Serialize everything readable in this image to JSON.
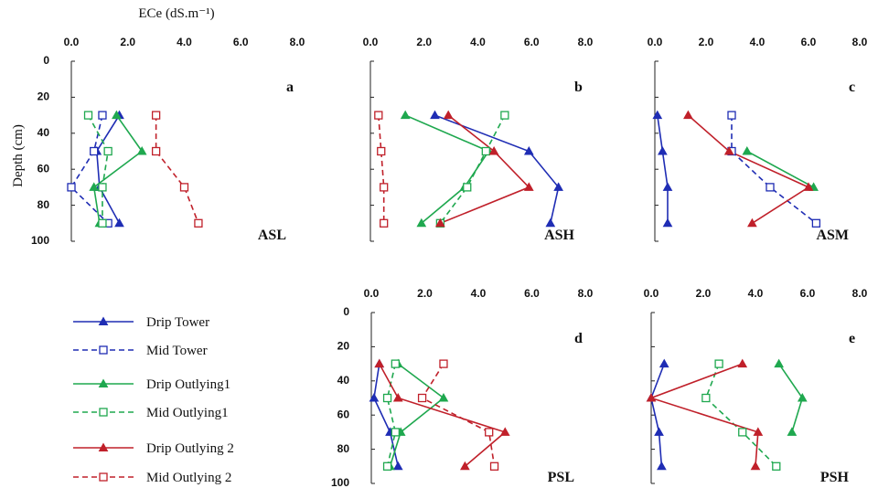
{
  "legend": [
    {
      "name": "Drip Tower",
      "color": "#1f2db4",
      "dash": false,
      "marker": "triangle"
    },
    {
      "name": "Mid Tower",
      "color": "#1f2db4",
      "dash": true,
      "marker": "square"
    },
    {
      "name": "Drip Outlying1",
      "color": "#1fa84f",
      "dash": false,
      "marker": "triangle"
    },
    {
      "name": "Mid Outlying1",
      "color": "#1fa84f",
      "dash": true,
      "marker": "square"
    },
    {
      "name": "Drip Outlying 2",
      "color": "#c0202a",
      "dash": false,
      "marker": "triangle"
    },
    {
      "name": "Mid Outlying 2",
      "color": "#c0202a",
      "dash": true,
      "marker": "square"
    }
  ],
  "chart_data": [
    {
      "type": "line",
      "panel": "a",
      "title": "ASL",
      "xlabel": "ECe (dS.m⁻¹)",
      "ylabel": "Depth (cm)",
      "xlim": [
        0,
        8
      ],
      "xticks": [
        {
          "value": 0,
          "label": "0.0"
        },
        {
          "value": 2,
          "label": "2.0"
        },
        {
          "value": 4,
          "label": "4.0"
        },
        {
          "value": 6,
          "label": "6.0"
        },
        {
          "value": 8,
          "label": "8.0"
        }
      ],
      "ylim": [
        0,
        100
      ],
      "yticks": [
        0,
        20,
        40,
        60,
        80,
        100
      ],
      "ytick_labels": true,
      "y": [
        30,
        50,
        70,
        90
      ],
      "series": [
        {
          "values": [
            1.7,
            0.9,
            1.0,
            1.7
          ]
        },
        {
          "values": [
            1.1,
            0.8,
            0.0,
            1.3
          ]
        },
        {
          "values": [
            1.6,
            2.5,
            0.8,
            1.0
          ]
        },
        {
          "values": [
            0.6,
            1.3,
            1.1,
            1.1
          ]
        },
        {
          "values": [
            null,
            null,
            null,
            null
          ]
        },
        {
          "values": [
            3.0,
            3.0,
            4.0,
            4.5
          ]
        }
      ]
    },
    {
      "type": "line",
      "panel": "b",
      "title": "ASH",
      "xlim": [
        0,
        8
      ],
      "xticks": [
        {
          "value": 0,
          "label": "0.0"
        },
        {
          "value": 2,
          "label": "2.0"
        },
        {
          "value": 4,
          "label": "4.0"
        },
        {
          "value": 6,
          "label": "6.0"
        },
        {
          "value": 8,
          "label": "8.0"
        }
      ],
      "ylim": [
        0,
        100
      ],
      "yticks": [
        0,
        20,
        40,
        60,
        80,
        100
      ],
      "ytick_labels": false,
      "y": [
        30,
        50,
        70,
        90
      ],
      "series": [
        {
          "values": [
            2.4,
            5.9,
            7.0,
            6.7
          ]
        },
        {
          "values": [
            null,
            null,
            null,
            null
          ]
        },
        {
          "values": [
            1.3,
            4.4,
            3.5,
            1.9
          ]
        },
        {
          "values": [
            5.0,
            4.3,
            3.6,
            2.6
          ]
        },
        {
          "values": [
            2.9,
            4.6,
            5.9,
            2.6
          ]
        },
        {
          "values": [
            0.3,
            0.4,
            0.5,
            0.5
          ]
        }
      ]
    },
    {
      "type": "line",
      "panel": "c",
      "title": "ASM",
      "xlim": [
        0,
        8
      ],
      "xticks": [
        {
          "value": 0,
          "label": "0.0"
        },
        {
          "value": 2,
          "label": "2.0"
        },
        {
          "value": 4,
          "label": "4.0"
        },
        {
          "value": 6,
          "label": "6.0"
        },
        {
          "value": 8,
          "label": "8.0"
        }
      ],
      "ylim": [
        0,
        100
      ],
      "yticks": [
        0,
        20,
        40,
        60,
        80,
        100
      ],
      "ytick_labels": false,
      "y": [
        30,
        50,
        70,
        90
      ],
      "series": [
        {
          "values": [
            0.1,
            0.3,
            0.5,
            0.5
          ]
        },
        {
          "values": [
            3.0,
            3.0,
            4.5,
            6.3
          ]
        },
        {
          "values": [
            null,
            3.6,
            6.2,
            null
          ]
        },
        {
          "values": [
            null,
            null,
            null,
            null
          ]
        },
        {
          "values": [
            1.3,
            2.9,
            6.0,
            3.8
          ]
        },
        {
          "values": [
            null,
            null,
            null,
            null
          ]
        }
      ]
    },
    {
      "type": "line",
      "panel": "d",
      "title": "PSL",
      "xlim": [
        0,
        8
      ],
      "xticks": [
        {
          "value": 0,
          "label": "0.0"
        },
        {
          "value": 2,
          "label": "2.0"
        },
        {
          "value": 4,
          "label": "4.0"
        },
        {
          "value": 6,
          "label": "6.0"
        },
        {
          "value": 8,
          "label": "8.0"
        }
      ],
      "ylim": [
        0,
        100
      ],
      "yticks": [
        0,
        20,
        40,
        60,
        80,
        100
      ],
      "ytick_labels": true,
      "y": [
        30,
        50,
        70,
        90
      ],
      "series": [
        {
          "values": [
            0.3,
            0.1,
            0.7,
            1.0
          ]
        },
        {
          "values": [
            null,
            null,
            null,
            null
          ]
        },
        {
          "values": [
            1.0,
            2.7,
            1.1,
            0.7
          ]
        },
        {
          "values": [
            0.9,
            0.6,
            0.9,
            0.6
          ]
        },
        {
          "values": [
            0.3,
            1.0,
            5.0,
            3.5
          ]
        },
        {
          "values": [
            2.7,
            1.9,
            4.4,
            4.6
          ]
        }
      ]
    },
    {
      "type": "line",
      "panel": "e",
      "title": "PSH",
      "xlim": [
        0,
        8
      ],
      "xticks": [
        {
          "value": 0,
          "label": "0.0"
        },
        {
          "value": 2,
          "label": "2.0"
        },
        {
          "value": 4,
          "label": "4.0"
        },
        {
          "value": 6,
          "label": "6.0"
        },
        {
          "value": 8,
          "label": "8.0"
        }
      ],
      "ylim": [
        0,
        100
      ],
      "yticks": [
        0,
        20,
        40,
        60,
        80,
        100
      ],
      "ytick_labels": false,
      "y": [
        30,
        50,
        70,
        90
      ],
      "series": [
        {
          "values": [
            0.5,
            0.0,
            0.3,
            0.4
          ]
        },
        {
          "values": [
            null,
            null,
            null,
            null
          ]
        },
        {
          "values": [
            4.9,
            5.8,
            5.4,
            null
          ]
        },
        {
          "values": [
            2.6,
            2.1,
            3.5,
            4.8
          ]
        },
        {
          "values": [
            3.5,
            0.0,
            4.1,
            4.0
          ]
        },
        {
          "values": [
            null,
            null,
            null,
            null
          ]
        }
      ]
    }
  ]
}
